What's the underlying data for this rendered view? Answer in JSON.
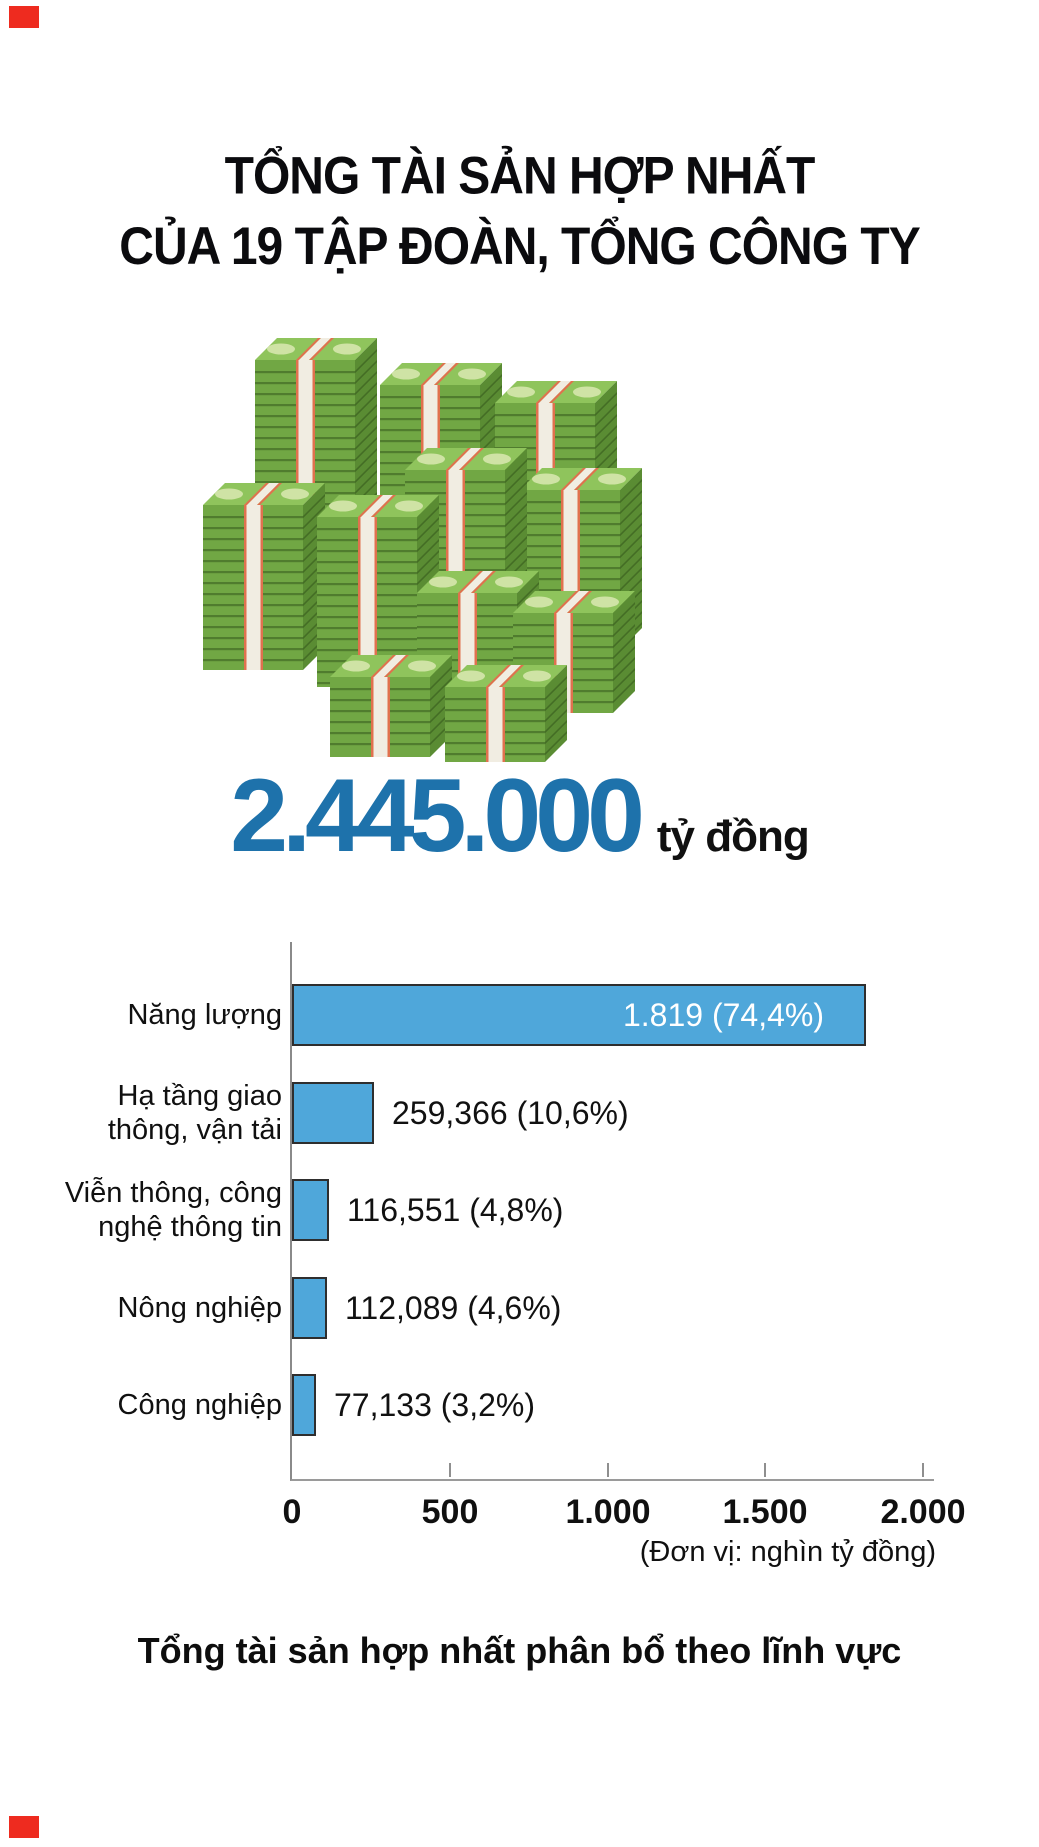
{
  "title": {
    "line1": "TỔNG TÀI SẢN HỢP NHẤT",
    "line2": "CỦA 19 TẬP ĐOÀN, TỔNG CÔNG TY"
  },
  "total": {
    "amount": "2.445.000",
    "unit": "tỷ đồng",
    "amount_color": "#1e72ab"
  },
  "illustration": {
    "name": "money-stacks",
    "colors": {
      "top": "#8fc45c",
      "front": "#71a744",
      "side": "#5a8c33",
      "band": "#f1ede2",
      "band_edge": "#e0714e",
      "oval": "#cfe3a5"
    }
  },
  "corner_marks": {
    "color": "#ee2b1f"
  },
  "chart_data": {
    "type": "bar",
    "orientation": "horizontal",
    "title": "Tổng tài sản hợp nhất phân bổ theo lĩnh vực",
    "unit_note": "(Đơn vị: nghìn tỷ đồng)",
    "categories": [
      "Năng lượng",
      "Hạ tầng giao thông, vận tải",
      "Viễn thông, công nghệ thông tin",
      "Nông nghiệp",
      "Công nghiệp"
    ],
    "category_lines": [
      [
        "Năng lượng"
      ],
      [
        "Hạ tầng giao",
        "thông, vận tải"
      ],
      [
        "Viễn thông, công",
        "nghệ thông tin"
      ],
      [
        "Nông nghiệp"
      ],
      [
        "Công nghiệp"
      ]
    ],
    "values": [
      1819,
      259.366,
      116.551,
      112.089,
      77.133
    ],
    "value_labels": [
      "1.819 (74,4%)",
      "259,366 (10,6%)",
      "116,551 (4,8%)",
      "112,089 (4,6%)",
      "77,133 (3,2%)"
    ],
    "label_placement": [
      "inside",
      "outside",
      "outside",
      "outside",
      "outside"
    ],
    "xlim": [
      0,
      2000
    ],
    "xticks": [
      {
        "value": 0,
        "label": "0"
      },
      {
        "value": 500,
        "label": "500"
      },
      {
        "value": 1000,
        "label": "1.000"
      },
      {
        "value": 1500,
        "label": "1.500"
      },
      {
        "value": 2000,
        "label": "2.000"
      }
    ],
    "grid": false,
    "bar_color": "#4fa7da",
    "bar_border": "#2e2e2e",
    "axis_color": "#8a8a8a",
    "inside_label_color": "#ffffff",
    "outside_label_color": "#111111"
  }
}
